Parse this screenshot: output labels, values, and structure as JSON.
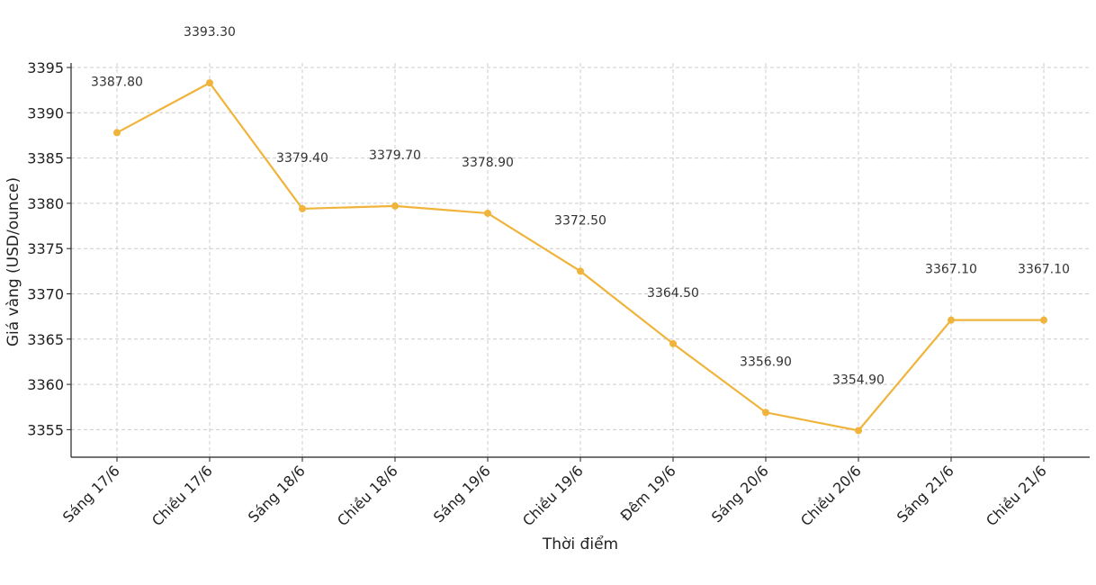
{
  "chart_data": {
    "type": "line",
    "title": "",
    "xlabel": "Thời điểm",
    "ylabel": "Giá vàng (USD/ounce)",
    "categories": [
      "Sáng 17/6",
      "Chiều 17/6",
      "Sáng 18/6",
      "Chiều 18/6",
      "Sáng 19/6",
      "Chiều 19/6",
      "Đêm 19/6",
      "Sáng 20/6",
      "Chiều 20/6",
      "Sáng 21/6",
      "Chiều 21/6"
    ],
    "series": [
      {
        "values": [
          3387.8,
          3393.3,
          3379.4,
          3379.7,
          3378.9,
          3372.5,
          3364.5,
          3356.9,
          3354.9,
          3367.1,
          3367.1
        ],
        "data_labels": [
          "3387.80",
          "3393.30",
          "3379.40",
          "3379.70",
          "3378.90",
          "3372.50",
          "3364.50",
          "3356.90",
          "3354.90",
          "3367.10",
          "3367.10"
        ],
        "color": "#f0b43c"
      }
    ],
    "yticks": [
      3355,
      3360,
      3365,
      3370,
      3375,
      3380,
      3385,
      3390,
      3395
    ],
    "ylim": [
      3353,
      3395
    ],
    "grid": true,
    "legend": "none"
  }
}
